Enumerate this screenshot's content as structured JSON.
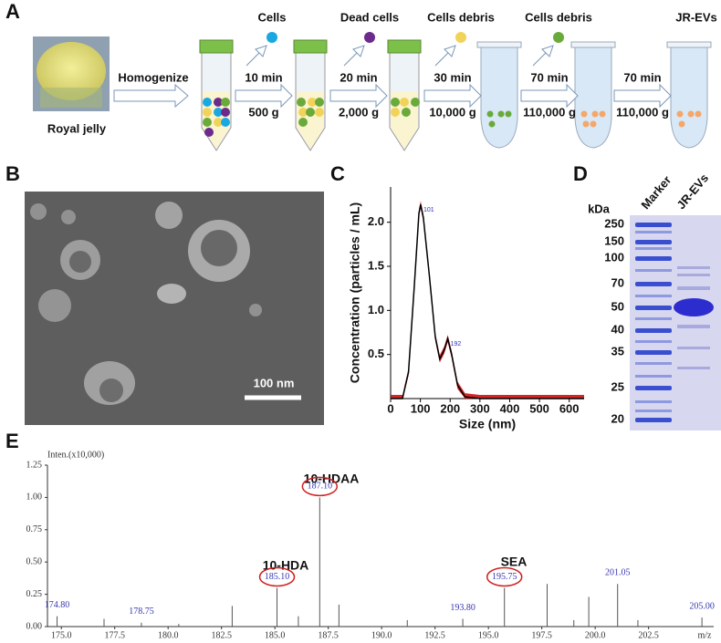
{
  "panel_labels": [
    "A",
    "B",
    "C",
    "D",
    "E"
  ],
  "panel_a": {
    "source": "Royal jelly",
    "process": "Homogenize",
    "steps": [
      {
        "removed": "Cells",
        "time": "10 min",
        "force": "500 g"
      },
      {
        "removed": "Dead cells",
        "time": "20 min",
        "force": "2,000 g"
      },
      {
        "removed": "Cells debris",
        "time": "30 min",
        "force": "10,000 g"
      },
      {
        "removed": "Cells debris",
        "time": "70 min",
        "force": "110,000 g"
      },
      {
        "removed": "JR-EVs",
        "time": "70 min",
        "force": "110,000 g"
      }
    ]
  },
  "panel_b": {
    "scale_bar": "100 nm"
  },
  "panel_d": {
    "unit": "kDa",
    "lanes": [
      "Marker",
      "JR-EVs"
    ],
    "ladder": [
      250,
      150,
      100,
      70,
      50,
      40,
      35,
      25,
      20
    ]
  },
  "chart_data": [
    {
      "type": "line",
      "xlabel": "Size (nm)",
      "ylabel": "Concentration (particles / mL)",
      "x": [
        0,
        40,
        60,
        80,
        95,
        101,
        110,
        130,
        150,
        165,
        180,
        192,
        205,
        225,
        250,
        300,
        650
      ],
      "values": [
        0,
        0,
        0.3,
        1.3,
        2.1,
        2.2,
        2.05,
        1.4,
        0.7,
        0.45,
        0.55,
        0.68,
        0.5,
        0.15,
        0.02,
        0,
        0
      ],
      "annotations": [
        "101",
        "192"
      ],
      "color": "#cc0000",
      "xlim": [
        0,
        650
      ],
      "xticks": [
        0,
        100,
        200,
        300,
        400,
        500,
        600
      ],
      "ylim": [
        0,
        2.4
      ],
      "yticks": [
        0.5,
        {
          "value": 1,
          "label": "1.0"
        },
        1.5,
        {
          "value": 2,
          "label": "2.0"
        }
      ]
    },
    {
      "type": "stem",
      "ylabel": "Inten.(x10,000)",
      "xlabel": "m/z",
      "x": [
        174.8,
        177.0,
        178.75,
        180.5,
        183.0,
        185.1,
        186.1,
        187.1,
        188.0,
        191.2,
        193.8,
        195.75,
        197.75,
        199.0,
        199.7,
        201.05,
        202.0,
        205.0
      ],
      "values": [
        0.08,
        0.06,
        0.03,
        0.02,
        0.16,
        0.3,
        0.08,
        1.0,
        0.17,
        0.05,
        0.06,
        0.3,
        0.33,
        0.05,
        0.23,
        0.33,
        0.05,
        0.07
      ],
      "value_labels": [
        "174.80",
        null,
        "178.75",
        null,
        null,
        "185.10",
        null,
        "187.10",
        null,
        null,
        "193.80",
        "195.75",
        null,
        null,
        null,
        "201.05",
        null,
        "205.00"
      ],
      "annotations": [
        "10-HDA",
        "10-HDAA",
        "SEA"
      ],
      "color": "#555555",
      "xlim": [
        174.35,
        205.55
      ],
      "xticks": [
        {
          "value": 175,
          "label": "175.0"
        },
        177.5,
        {
          "value": 180,
          "label": "180.0"
        },
        182.5,
        {
          "value": 185,
          "label": "185.0"
        },
        187.5,
        {
          "value": 190,
          "label": "190.0"
        },
        192.5,
        {
          "value": 195,
          "label": "195.0"
        },
        197.5,
        {
          "value": 200,
          "label": "200.0"
        },
        202.5
      ],
      "ylim": [
        0,
        1.25
      ],
      "yticks": [
        {
          "value": 0,
          "label": "0.00"
        },
        0.25,
        {
          "value": 0.5,
          "label": "0.50"
        },
        0.75,
        {
          "value": 1,
          "label": "1.00"
        },
        1.25
      ]
    }
  ]
}
